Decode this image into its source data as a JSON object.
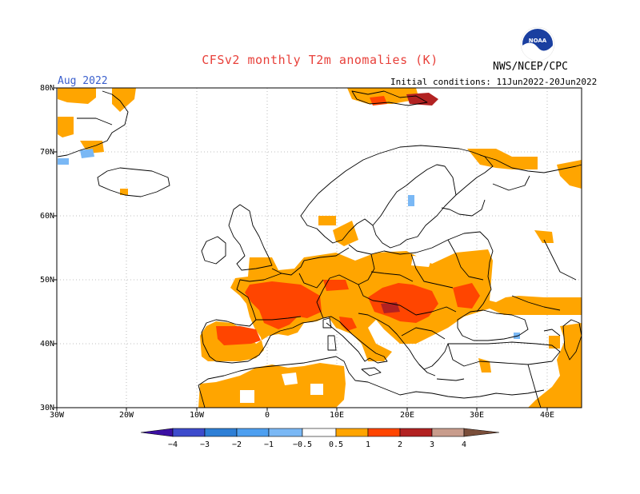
{
  "header": {
    "title": "CFSv2 monthly T2m anomalies (K)",
    "agency": "NWS/NCEP/CPC",
    "valid_month": "Aug 2022",
    "initial_conditions": "Initial conditions: 11Jun2022-20Jun2022"
  },
  "logo": {
    "text": "NOAA",
    "icon": "noaa-logo"
  },
  "axes": {
    "lat_labels": [
      "80N",
      "70N",
      "60N",
      "50N",
      "40N",
      "30N"
    ],
    "lon_labels": [
      "30W",
      "20W",
      "10W",
      "0",
      "10E",
      "20E",
      "30E",
      "40E"
    ]
  },
  "colorbar": {
    "labels": [
      "−4",
      "−3",
      "−2",
      "−1",
      "−0.5",
      "0.5",
      "1",
      "2",
      "3",
      "4"
    ],
    "colors": [
      "#3b0fa3",
      "#3d4bcc",
      "#2e7fd6",
      "#4d9ff0",
      "#7ab8f5",
      "#ffffff",
      "#ffa500",
      "#ff4500",
      "#b22222",
      "#8b0000",
      "#c89c8c",
      "#7a4e3a"
    ]
  },
  "map_colors": {
    "orange": "#ffa500",
    "red": "#ff4500",
    "darkred": "#b22222",
    "deepred": "#8b0000",
    "lightblue": "#7ab8f5"
  }
}
